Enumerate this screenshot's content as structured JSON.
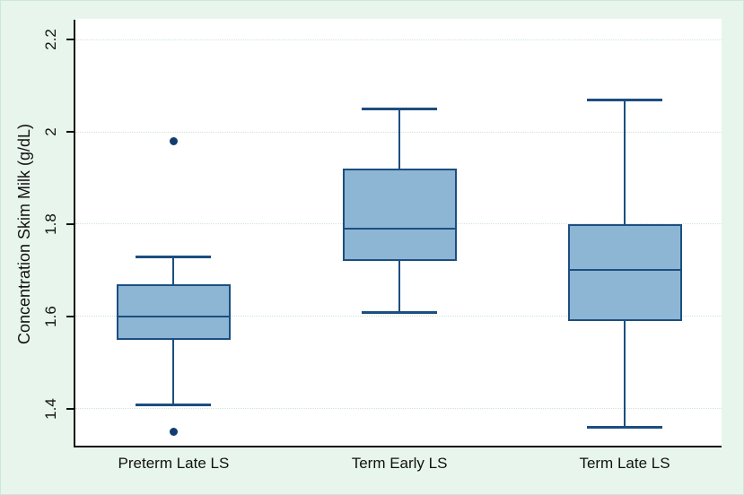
{
  "figure": {
    "background_color": "#e8f5ec",
    "plot_background_color": "#ffffff"
  },
  "chart_data": {
    "type": "box",
    "title": "",
    "xlabel": "",
    "ylabel": "Concentration Skim Milk (g/dL)",
    "categories": [
      "Preterm Late LS",
      "Term Early LS",
      "Term Late LS"
    ],
    "series": [
      {
        "category": "Preterm Late LS",
        "whisker_low": 1.41,
        "q1": 1.55,
        "median": 1.6,
        "q3": 1.67,
        "whisker_high": 1.73,
        "outliers": [
          1.98,
          1.35
        ]
      },
      {
        "category": "Term Early LS",
        "whisker_low": 1.61,
        "q1": 1.72,
        "median": 1.79,
        "q3": 1.92,
        "whisker_high": 2.05,
        "outliers": []
      },
      {
        "category": "Term Late LS",
        "whisker_low": 1.36,
        "q1": 1.59,
        "median": 1.7,
        "q3": 1.8,
        "whisker_high": 2.07,
        "outliers": []
      }
    ],
    "yticks": [
      {
        "value": 2.2,
        "label": "2.2"
      },
      {
        "value": 2.0,
        "label": "2"
      },
      {
        "value": 1.8,
        "label": "1.8"
      },
      {
        "value": 1.6,
        "label": "1.6"
      },
      {
        "value": 1.4,
        "label": "1.4"
      }
    ],
    "ylim": [
      1.318,
      2.245
    ],
    "grid": true,
    "legend": false,
    "colors": {
      "box_fill": "#8db6d4",
      "box_line": "#1c4e80",
      "outlier": "#123c6e",
      "axis": "#111111",
      "grid": "#cfe5d8",
      "text": "#111111"
    }
  }
}
